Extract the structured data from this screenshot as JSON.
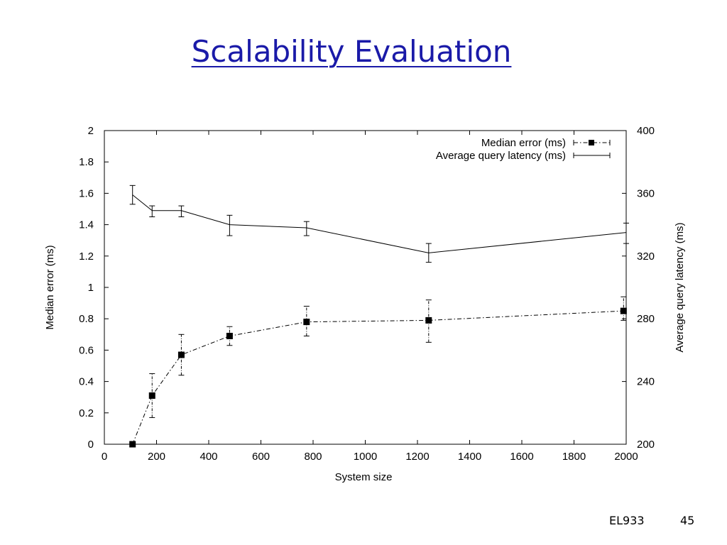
{
  "slide": {
    "title": "Scalability Evaluation",
    "course": "EL933",
    "page_number": "45"
  },
  "chart_data": {
    "type": "line",
    "xlabel": "System size",
    "ylabel_left": "Median error (ms)",
    "ylabel_right": "Average query latency (ms)",
    "xlim": [
      0,
      2000
    ],
    "xticks": [
      0,
      200,
      400,
      600,
      800,
      1000,
      1200,
      1400,
      1600,
      1800,
      2000
    ],
    "ylim_left": [
      0,
      2
    ],
    "yticks_left": [
      0,
      0.2,
      0.4,
      0.6,
      0.8,
      1,
      1.2,
      1.4,
      1.6,
      1.8,
      2
    ],
    "ylim_right": [
      200,
      400
    ],
    "yticks_right": [
      200,
      240,
      280,
      320,
      360,
      400
    ],
    "grid": false,
    "legend_position": "top-right",
    "series": [
      {
        "name": "Median error (ms)",
        "axis": "left",
        "style": "dash-dot with square markers",
        "x": [
          108,
          183,
          295,
          480,
          775,
          1243,
          1990
        ],
        "y": [
          0.0,
          0.31,
          0.57,
          0.69,
          0.78,
          0.79,
          0.85
        ],
        "err_low": [
          0.0,
          0.17,
          0.44,
          0.63,
          0.69,
          0.65,
          0.79
        ],
        "err_high": [
          0.0,
          0.45,
          0.7,
          0.75,
          0.88,
          0.92,
          0.94
        ]
      },
      {
        "name": "Average query latency (ms)",
        "axis": "right",
        "style": "solid",
        "x": [
          108,
          183,
          295,
          480,
          775,
          1243,
          2000
        ],
        "y": [
          359,
          349,
          349,
          340,
          338,
          322,
          335
        ],
        "err_low": [
          353,
          345,
          345,
          333,
          333,
          316,
          328
        ],
        "err_high": [
          365,
          352,
          352,
          346,
          342,
          328,
          341
        ]
      }
    ]
  }
}
